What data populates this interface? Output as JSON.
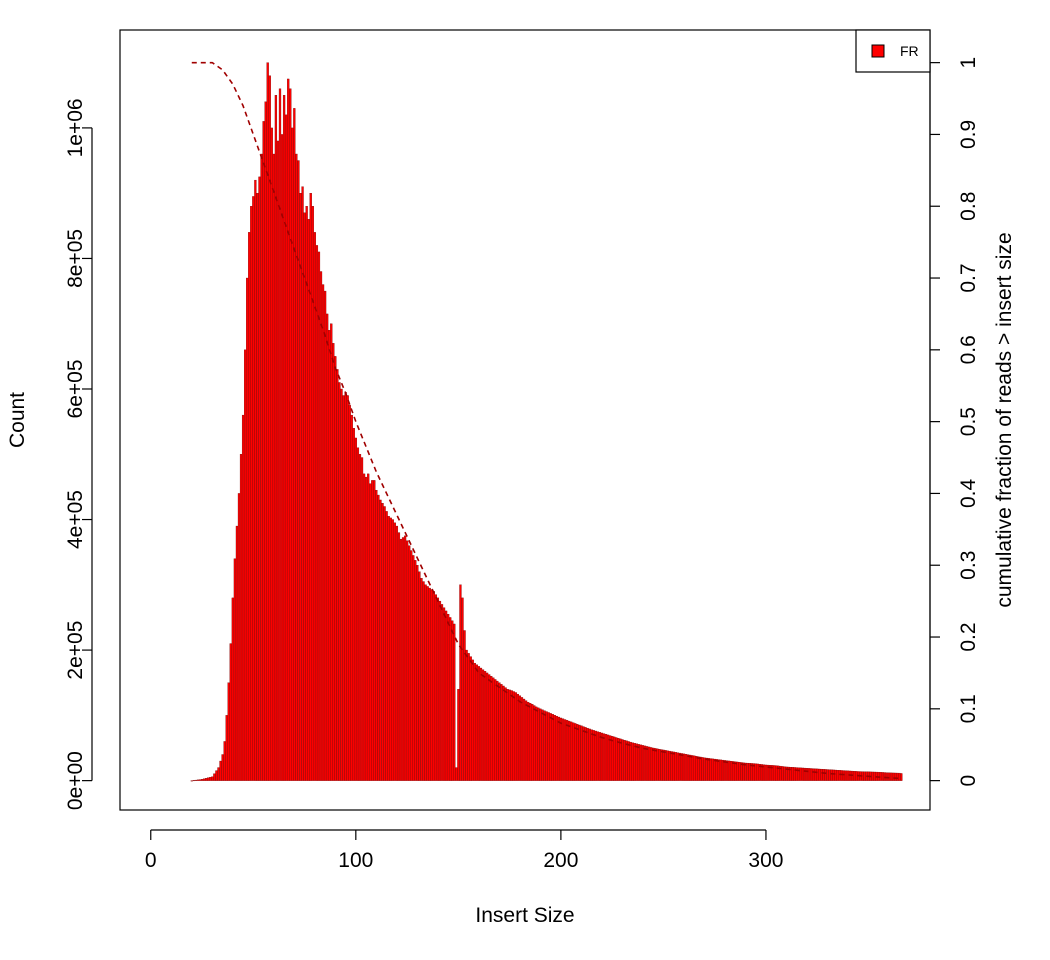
{
  "chart_data": {
    "type": "bar",
    "xlabel": "Insert Size",
    "ylabel": "Count",
    "y2label": "cumulative fraction of reads > insert size",
    "xlim": [
      -15,
      380
    ],
    "ylim": [
      -45000,
      1150000
    ],
    "y2lim": [
      0,
      1
    ],
    "xticks": [
      0,
      100,
      200,
      300
    ],
    "xtick_labels": [
      "0",
      "100",
      "200",
      "300"
    ],
    "yticks": [
      0,
      200000,
      400000,
      600000,
      800000,
      1000000
    ],
    "ytick_labels": [
      "0e+00",
      "2e+05",
      "4e+05",
      "6e+05",
      "8e+05",
      "1e+06"
    ],
    "y2ticks": [
      0,
      0.1,
      0.2,
      0.3,
      0.4,
      0.5,
      0.6,
      0.7,
      0.8,
      0.9,
      1
    ],
    "y2tick_labels": [
      "0",
      "0.1",
      "0.2",
      "0.3",
      "0.4",
      "0.5",
      "0.6",
      "0.7",
      "0.8",
      "0.9",
      "1"
    ],
    "legend": {
      "position": "top-right",
      "entries": [
        {
          "label": "FR",
          "color": "#ff0000"
        }
      ]
    },
    "series": [
      {
        "name": "FR",
        "color": "#ff0000",
        "points": [
          [
            20,
            0
          ],
          [
            25,
            2000
          ],
          [
            30,
            6000
          ],
          [
            33,
            20000
          ],
          [
            35,
            40000
          ],
          [
            36,
            60000
          ],
          [
            37,
            100000
          ],
          [
            38,
            150000
          ],
          [
            39,
            210000
          ],
          [
            40,
            280000
          ],
          [
            41,
            340000
          ],
          [
            42,
            390000
          ],
          [
            43,
            440000
          ],
          [
            44,
            500000
          ],
          [
            45,
            560000
          ],
          [
            46,
            660000
          ],
          [
            47,
            770000
          ],
          [
            48,
            840000
          ],
          [
            49,
            880000
          ],
          [
            50,
            895000
          ],
          [
            51,
            920000
          ],
          [
            52,
            900000
          ],
          [
            53,
            925000
          ],
          [
            54,
            960000
          ],
          [
            55,
            1010000
          ],
          [
            56,
            1040000
          ],
          [
            57,
            1100000
          ],
          [
            58,
            1080000
          ],
          [
            59,
            1000000
          ],
          [
            60,
            960000
          ],
          [
            61,
            1050000
          ],
          [
            62,
            980000
          ],
          [
            63,
            1060000
          ],
          [
            64,
            990000
          ],
          [
            65,
            1050000
          ],
          [
            66,
            1020000
          ],
          [
            67,
            1075000
          ],
          [
            68,
            1060000
          ],
          [
            69,
            1000000
          ],
          [
            70,
            1030000
          ],
          [
            71,
            960000
          ],
          [
            72,
            950000
          ],
          [
            73,
            900000
          ],
          [
            74,
            910000
          ],
          [
            75,
            870000
          ],
          [
            76,
            880000
          ],
          [
            77,
            860000
          ],
          [
            78,
            900000
          ],
          [
            79,
            880000
          ],
          [
            80,
            840000
          ],
          [
            81,
            820000
          ],
          [
            82,
            810000
          ],
          [
            83,
            780000
          ],
          [
            84,
            760000
          ],
          [
            85,
            750000
          ],
          [
            86,
            715000
          ],
          [
            87,
            690000
          ],
          [
            88,
            700000
          ],
          [
            89,
            670000
          ],
          [
            90,
            650000
          ],
          [
            91,
            630000
          ],
          [
            92,
            610000
          ],
          [
            93,
            600000
          ],
          [
            94,
            590000
          ],
          [
            95,
            595000
          ],
          [
            96,
            590000
          ],
          [
            97,
            575000
          ],
          [
            98,
            560000
          ],
          [
            99,
            540000
          ],
          [
            100,
            525000
          ],
          [
            101,
            510000
          ],
          [
            102,
            500000
          ],
          [
            103,
            495000
          ],
          [
            104,
            470000
          ],
          [
            105,
            465000
          ],
          [
            106,
            470000
          ],
          [
            107,
            455000
          ],
          [
            108,
            460000
          ],
          [
            109,
            460000
          ],
          [
            110,
            445000
          ],
          [
            112,
            430000
          ],
          [
            114,
            420000
          ],
          [
            116,
            405000
          ],
          [
            118,
            400000
          ],
          [
            120,
            390000
          ],
          [
            122,
            370000
          ],
          [
            124,
            375000
          ],
          [
            126,
            360000
          ],
          [
            128,
            345000
          ],
          [
            130,
            330000
          ],
          [
            132,
            310000
          ],
          [
            134,
            300000
          ],
          [
            136,
            295000
          ],
          [
            138,
            290000
          ],
          [
            140,
            280000
          ],
          [
            142,
            270000
          ],
          [
            144,
            260000
          ],
          [
            146,
            250000
          ],
          [
            148,
            240000
          ],
          [
            149,
            20000
          ],
          [
            150,
            140000
          ],
          [
            151,
            300000
          ],
          [
            152,
            280000
          ],
          [
            153,
            230000
          ],
          [
            154,
            200000
          ],
          [
            156,
            190000
          ],
          [
            158,
            180000
          ],
          [
            160,
            175000
          ],
          [
            162,
            170000
          ],
          [
            164,
            165000
          ],
          [
            166,
            160000
          ],
          [
            168,
            155000
          ],
          [
            170,
            150000
          ],
          [
            172,
            145000
          ],
          [
            174,
            140000
          ],
          [
            176,
            138000
          ],
          [
            178,
            135000
          ],
          [
            180,
            130000
          ],
          [
            182,
            125000
          ],
          [
            184,
            120000
          ],
          [
            186,
            117000
          ],
          [
            188,
            113000
          ],
          [
            190,
            110000
          ],
          [
            195,
            103000
          ],
          [
            200,
            96000
          ],
          [
            205,
            90000
          ],
          [
            210,
            84000
          ],
          [
            215,
            78000
          ],
          [
            220,
            73000
          ],
          [
            225,
            68000
          ],
          [
            230,
            63000
          ],
          [
            235,
            58000
          ],
          [
            240,
            54000
          ],
          [
            245,
            50000
          ],
          [
            250,
            47000
          ],
          [
            255,
            44000
          ],
          [
            260,
            41000
          ],
          [
            265,
            38000
          ],
          [
            270,
            35000
          ],
          [
            275,
            33000
          ],
          [
            280,
            31000
          ],
          [
            285,
            29000
          ],
          [
            290,
            27000
          ],
          [
            295,
            26000
          ],
          [
            300,
            24000
          ],
          [
            305,
            23000
          ],
          [
            310,
            21000
          ],
          [
            315,
            20000
          ],
          [
            320,
            19000
          ],
          [
            325,
            18000
          ],
          [
            330,
            17000
          ],
          [
            335,
            16000
          ],
          [
            340,
            15000
          ],
          [
            345,
            14000
          ],
          [
            350,
            13500
          ],
          [
            355,
            13000
          ],
          [
            360,
            12000
          ],
          [
            365,
            11500
          ],
          [
            366,
            11000
          ]
        ]
      }
    ],
    "cumulative": {
      "name": "cumulative fraction of reads > insert size",
      "color": "#a00000",
      "style": "dashed",
      "points": [
        [
          20,
          1
        ],
        [
          30,
          1
        ],
        [
          35,
          0.99
        ],
        [
          40,
          0.97
        ],
        [
          45,
          0.94
        ],
        [
          50,
          0.9
        ],
        [
          55,
          0.86
        ],
        [
          60,
          0.82
        ],
        [
          65,
          0.78
        ],
        [
          70,
          0.74
        ],
        [
          75,
          0.7
        ],
        [
          80,
          0.66
        ],
        [
          85,
          0.62
        ],
        [
          90,
          0.575
        ],
        [
          95,
          0.54
        ],
        [
          100,
          0.5
        ],
        [
          105,
          0.465
        ],
        [
          110,
          0.43
        ],
        [
          115,
          0.4
        ],
        [
          120,
          0.37
        ],
        [
          125,
          0.34
        ],
        [
          130,
          0.31
        ],
        [
          135,
          0.28
        ],
        [
          140,
          0.25
        ],
        [
          145,
          0.22
        ],
        [
          150,
          0.19
        ],
        [
          155,
          0.17
        ],
        [
          160,
          0.15
        ],
        [
          170,
          0.13
        ],
        [
          180,
          0.11
        ],
        [
          190,
          0.095
        ],
        [
          200,
          0.08
        ],
        [
          210,
          0.07
        ],
        [
          220,
          0.06
        ],
        [
          230,
          0.052
        ],
        [
          240,
          0.045
        ],
        [
          250,
          0.04
        ],
        [
          260,
          0.035
        ],
        [
          270,
          0.03
        ],
        [
          280,
          0.026
        ],
        [
          290,
          0.022
        ],
        [
          300,
          0.019
        ],
        [
          310,
          0.016
        ],
        [
          320,
          0.013
        ],
        [
          330,
          0.01
        ],
        [
          340,
          0.008
        ],
        [
          350,
          0.006
        ],
        [
          360,
          0.004
        ],
        [
          366,
          0.003
        ]
      ]
    }
  }
}
